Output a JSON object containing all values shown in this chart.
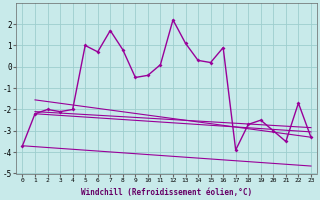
{
  "xlabel": "Windchill (Refroidissement éolien,°C)",
  "x": [
    0,
    1,
    2,
    3,
    4,
    5,
    6,
    7,
    8,
    9,
    10,
    11,
    12,
    13,
    14,
    15,
    16,
    17,
    18,
    19,
    20,
    21,
    22,
    23
  ],
  "y_main": [
    -3.7,
    -2.2,
    -2.0,
    -2.1,
    -2.0,
    1.0,
    0.7,
    1.7,
    0.8,
    -0.5,
    -0.4,
    0.1,
    2.2,
    1.1,
    0.3,
    0.2,
    0.9,
    -3.9,
    -2.7,
    -2.5,
    -3.0,
    -3.5,
    -1.7,
    -3.3
  ],
  "trend_lines": [
    {
      "x0": 0,
      "y0": -3.7,
      "x1": 23,
      "y1": -4.7
    },
    {
      "x0": 0,
      "y0": -2.2,
      "x1": 23,
      "y1": -3.0
    },
    {
      "x0": 0,
      "y0": -2.1,
      "x1": 23,
      "y1": -2.8
    },
    {
      "x0": 1,
      "y0": -1.6,
      "x1": 23,
      "y1": -3.3
    }
  ],
  "line_color": "#990099",
  "bg_color": "#c8eaea",
  "grid_color": "#9ecece",
  "ylim": [
    -5,
    3
  ],
  "yticks": [
    -5,
    -4,
    -3,
    -2,
    -1,
    0,
    1,
    2
  ],
  "xticks": [
    0,
    1,
    2,
    3,
    4,
    5,
    6,
    7,
    8,
    9,
    10,
    11,
    12,
    13,
    14,
    15,
    16,
    17,
    18,
    19,
    20,
    21,
    22,
    23
  ]
}
